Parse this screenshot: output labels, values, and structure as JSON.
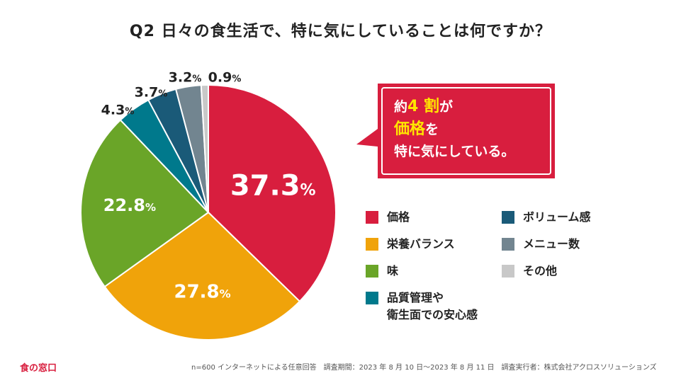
{
  "title": "Q2 日々の食生活で、特に気にしていることは何ですか？",
  "colors": {
    "price": "#d81e3e",
    "nutrition": "#f0a30a",
    "taste": "#6aa528",
    "quality": "#00798c",
    "volume": "#1a5a78",
    "menu": "#728590",
    "other": "#c8c8c8",
    "callout": "#d81e3e",
    "highlight": "#ffe600"
  },
  "chart_data": {
    "type": "pie",
    "title": "Q2 日々の食生活で、特に気にしていることは何ですか？",
    "unit": "%",
    "slices": [
      {
        "key": "price",
        "label": "価格",
        "value": 37.3
      },
      {
        "key": "nutrition",
        "label": "栄養バランス",
        "value": 27.8
      },
      {
        "key": "taste",
        "label": "味",
        "value": 22.8
      },
      {
        "key": "quality",
        "label": "品質管理や衛生面での安心感",
        "value": 4.3
      },
      {
        "key": "volume",
        "label": "ボリューム感",
        "value": 3.7
      },
      {
        "key": "menu",
        "label": "メニュー数",
        "value": 3.2
      },
      {
        "key": "other",
        "label": "その他",
        "value": 0.9
      }
    ],
    "start": "12 o'clock",
    "direction": "clockwise",
    "legend_position": "right"
  },
  "callout": {
    "line1_pre": "約",
    "line1_hl": "4 割",
    "line1_post": "が",
    "line2_hl": "価格",
    "line2_post": "を",
    "line3": "特に気にしている。"
  },
  "legend": {
    "items": [
      {
        "key": "price",
        "line1": "価格",
        "line2": ""
      },
      {
        "key": "nutrition",
        "line1": "栄養バランス",
        "line2": ""
      },
      {
        "key": "taste",
        "line1": "味",
        "line2": ""
      },
      {
        "key": "quality",
        "line1": "品質管理や",
        "line2": "衛生面での安心感"
      },
      {
        "key": "volume",
        "line1": "ボリューム感",
        "line2": ""
      },
      {
        "key": "menu",
        "line1": "メニュー数",
        "line2": ""
      },
      {
        "key": "other",
        "line1": "その他",
        "line2": ""
      }
    ]
  },
  "footer": {
    "logo": "食の窓口",
    "note": "n=600 インターネットによる任意回答　調査期間：2023 年 8 月 10 日〜2023 年 8 月 11 日　調査実行者：株式会社アクロスソリューションズ"
  }
}
